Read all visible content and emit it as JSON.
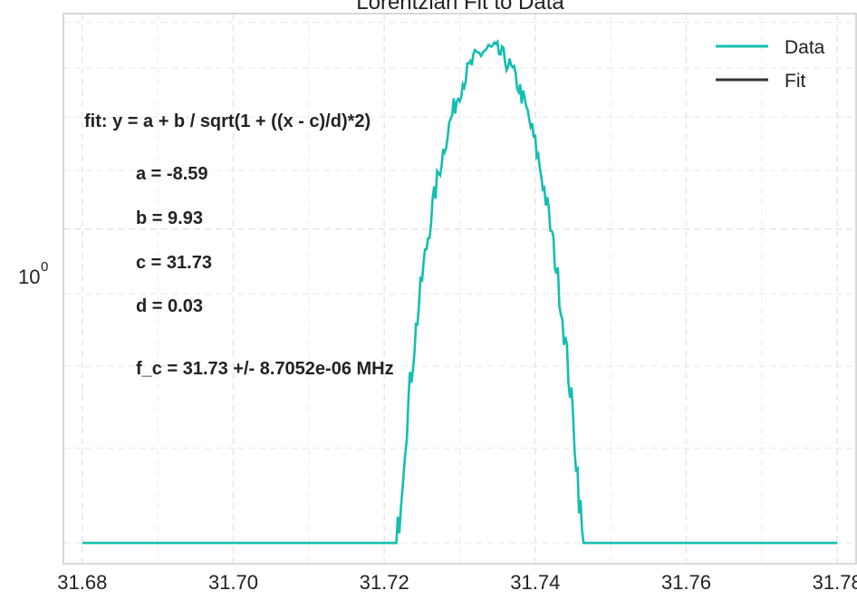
{
  "chart_data": {
    "type": "line",
    "title": "Lorentzian Fit to Data",
    "xlabel": "",
    "ylabel": "",
    "x_ticks": [
      "31.68",
      "31.70",
      "31.72",
      "31.74",
      "31.76",
      "31.78"
    ],
    "x_tick_values": [
      31.68,
      31.7,
      31.72,
      31.74,
      31.76,
      31.78
    ],
    "y_tick_label": {
      "base": "10",
      "exp": "0"
    },
    "y_scale": "log",
    "xlim": [
      31.6775,
      31.7825
    ],
    "ylim": [
      0.58,
      1.42
    ],
    "grid": true,
    "legend_position": "top-right",
    "fit_params": {
      "a": -8.59,
      "b": 9.93,
      "c": 31.734,
      "d": 0.03
    },
    "series": [
      {
        "name": "Data",
        "color": "#13bfb0",
        "x_range": [
          31.68,
          31.78
        ],
        "points": 500,
        "noise": "random"
      },
      {
        "name": "Fit",
        "color": "#333333",
        "x_range": [
          31.68,
          31.78
        ],
        "points": 300
      }
    ],
    "annotations": [
      "fit: y = a + b / sqrt(1 + ((x - c)/d)*2)",
      "a = -8.59",
      "b = 9.93",
      "c = 31.73",
      "d = 0.03",
      "f_c = 31.73 +/- 8.7052e-06 MHz"
    ]
  }
}
